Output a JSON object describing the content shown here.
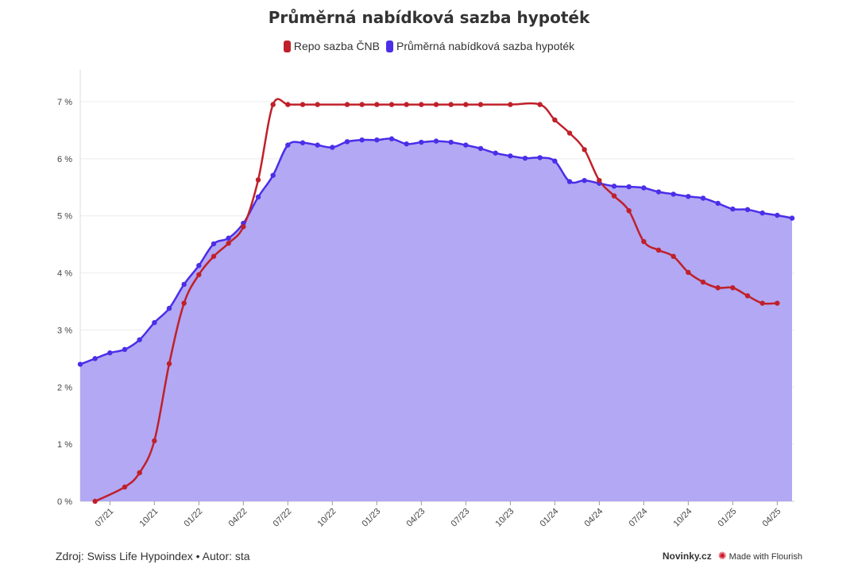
{
  "chart_data": {
    "type": "line",
    "title": "Průměrná nabídková sazba hypoték",
    "ylim": [
      0,
      7
    ],
    "y_ticks": [
      "0 %",
      "1 %",
      "2 %",
      "3 %",
      "4 %",
      "5 %",
      "6 %",
      "7 %"
    ],
    "x_range": [
      "2021-05",
      "2025-05"
    ],
    "x_ticks": [
      "07/21",
      "10/21",
      "01/22",
      "04/22",
      "07/22",
      "10/22",
      "01/23",
      "04/23",
      "07/23",
      "10/23",
      "01/24",
      "04/24",
      "07/24",
      "10/24",
      "01/25",
      "04/25"
    ],
    "grid": true,
    "legend_position": "top-center",
    "series": [
      {
        "name": "Repo sazba ČNB",
        "color": "#c0202a",
        "fill": false,
        "points": [
          [
            "2021-06",
            0.0
          ],
          [
            "2021-08",
            0.25
          ],
          [
            "2021-09",
            0.5
          ],
          [
            "2021-10",
            1.06
          ],
          [
            "2021-11",
            2.41
          ],
          [
            "2021-12",
            3.47
          ],
          [
            "2022-01",
            3.97
          ],
          [
            "2022-02",
            4.29
          ],
          [
            "2022-03",
            4.52
          ],
          [
            "2022-04",
            4.81
          ],
          [
            "2022-05",
            5.63
          ],
          [
            "2022-06",
            6.95
          ],
          [
            "2022-07",
            6.95
          ],
          [
            "2022-08",
            6.95
          ],
          [
            "2022-09",
            6.95
          ],
          [
            "2022-11",
            6.95
          ],
          [
            "2022-12",
            6.95
          ],
          [
            "2023-01",
            6.95
          ],
          [
            "2023-02",
            6.95
          ],
          [
            "2023-03",
            6.95
          ],
          [
            "2023-04",
            6.95
          ],
          [
            "2023-05",
            6.95
          ],
          [
            "2023-06",
            6.95
          ],
          [
            "2023-07",
            6.95
          ],
          [
            "2023-08",
            6.95
          ],
          [
            "2023-10",
            6.95
          ],
          [
            "2023-12",
            6.95
          ],
          [
            "2024-01",
            6.68
          ],
          [
            "2024-02",
            6.45
          ],
          [
            "2024-03",
            6.16
          ],
          [
            "2024-04",
            5.62
          ],
          [
            "2024-05",
            5.35
          ],
          [
            "2024-06",
            5.09
          ],
          [
            "2024-07",
            4.55
          ],
          [
            "2024-08",
            4.4
          ],
          [
            "2024-09",
            4.29
          ],
          [
            "2024-10",
            4.01
          ],
          [
            "2024-11",
            3.84
          ],
          [
            "2024-12",
            3.74
          ],
          [
            "2025-01",
            3.74
          ],
          [
            "2025-02",
            3.6
          ],
          [
            "2025-03",
            3.47
          ],
          [
            "2025-04",
            3.47
          ]
        ]
      },
      {
        "name": "Průměrná nabídková sazba hypoték",
        "color": "#4a2ee8",
        "fill": true,
        "fill_color": "#b2a8f4",
        "points": [
          [
            "2021-05",
            2.4
          ],
          [
            "2021-06",
            2.5
          ],
          [
            "2021-07",
            2.6
          ],
          [
            "2021-08",
            2.66
          ],
          [
            "2021-09",
            2.83
          ],
          [
            "2021-10",
            3.13
          ],
          [
            "2021-11",
            3.38
          ],
          [
            "2021-12",
            3.8
          ],
          [
            "2022-01",
            4.13
          ],
          [
            "2022-02",
            4.51
          ],
          [
            "2022-03",
            4.61
          ],
          [
            "2022-04",
            4.87
          ],
          [
            "2022-05",
            5.33
          ],
          [
            "2022-06",
            5.71
          ],
          [
            "2022-07",
            6.24
          ],
          [
            "2022-08",
            6.28
          ],
          [
            "2022-09",
            6.24
          ],
          [
            "2022-10",
            6.2
          ],
          [
            "2022-11",
            6.3
          ],
          [
            "2022-12",
            6.33
          ],
          [
            "2023-01",
            6.33
          ],
          [
            "2023-02",
            6.35
          ],
          [
            "2023-03",
            6.26
          ],
          [
            "2023-04",
            6.29
          ],
          [
            "2023-05",
            6.31
          ],
          [
            "2023-06",
            6.29
          ],
          [
            "2023-07",
            6.24
          ],
          [
            "2023-08",
            6.18
          ],
          [
            "2023-09",
            6.1
          ],
          [
            "2023-10",
            6.05
          ],
          [
            "2023-11",
            6.01
          ],
          [
            "2023-12",
            6.02
          ],
          [
            "2024-01",
            5.96
          ],
          [
            "2024-02",
            5.6
          ],
          [
            "2024-03",
            5.62
          ],
          [
            "2024-04",
            5.57
          ],
          [
            "2024-05",
            5.52
          ],
          [
            "2024-06",
            5.51
          ],
          [
            "2024-07",
            5.49
          ],
          [
            "2024-08",
            5.42
          ],
          [
            "2024-09",
            5.38
          ],
          [
            "2024-10",
            5.34
          ],
          [
            "2024-11",
            5.31
          ],
          [
            "2024-12",
            5.22
          ],
          [
            "2025-01",
            5.12
          ],
          [
            "2025-02",
            5.11
          ],
          [
            "2025-03",
            5.05
          ],
          [
            "2025-04",
            5.01
          ],
          [
            "2025-05",
            4.96
          ]
        ]
      }
    ]
  },
  "footer": {
    "source": "Zdroj: Swiss Life Hypoindex • Autor: sta",
    "brand": "Novinky.cz",
    "made_with": "Made with Flourish",
    "made_with_icon": "flourish-logo-icon"
  }
}
